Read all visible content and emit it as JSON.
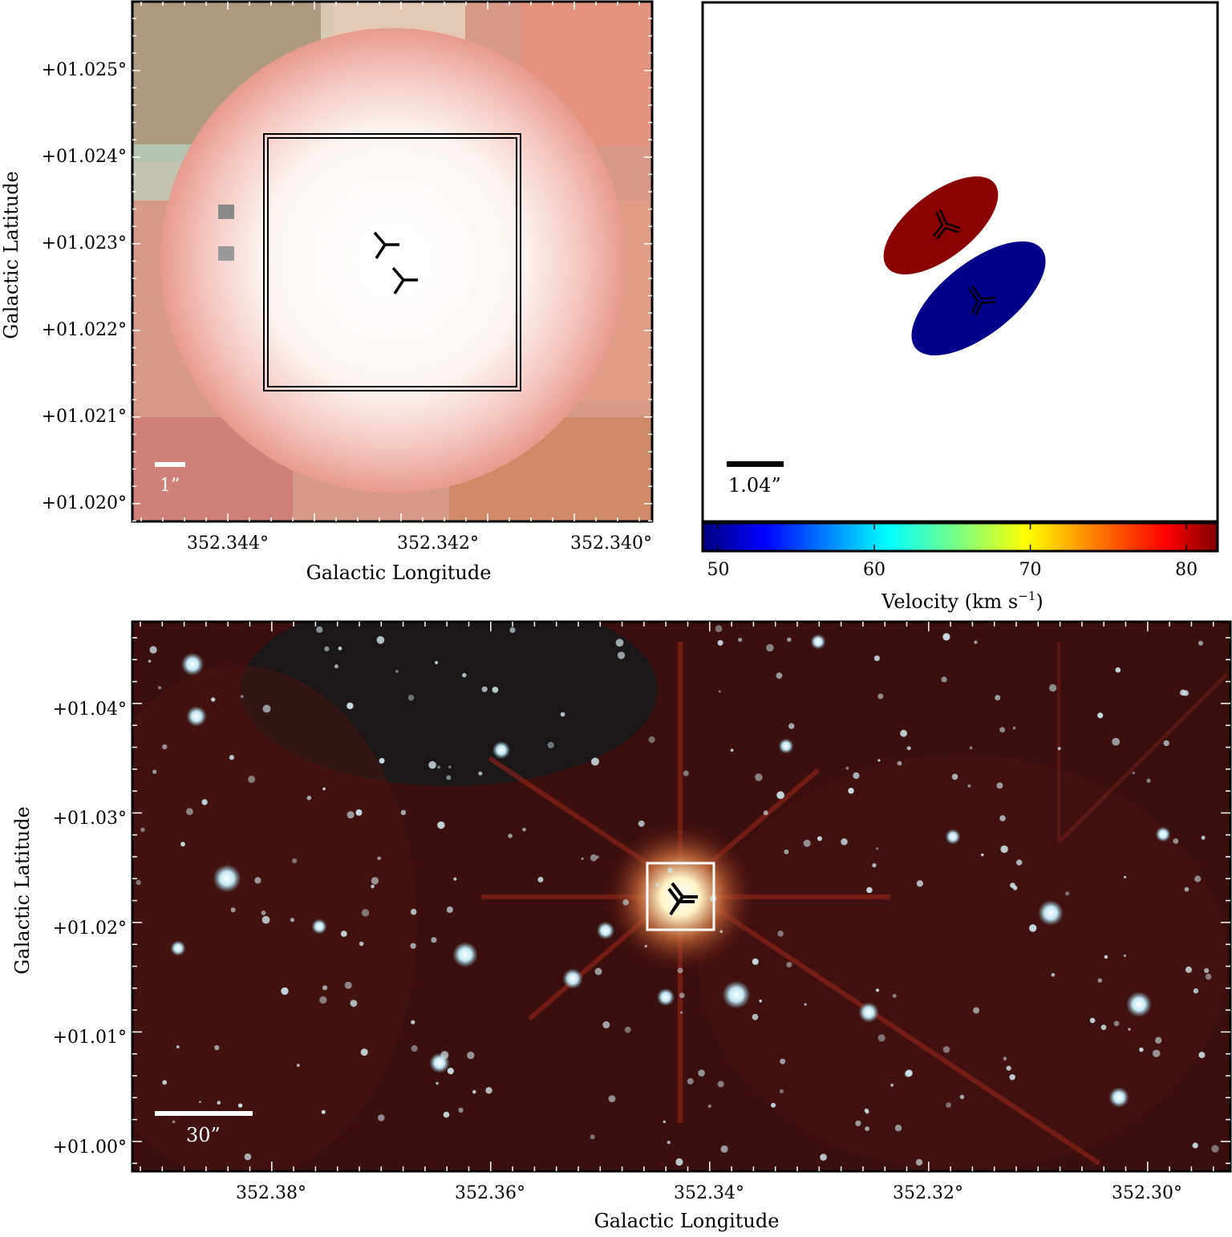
{
  "top_left": {
    "xlabel": "Galactic Longitude",
    "ylabel": "Galactic Latitude",
    "x_ticks": [
      "352.344°",
      "352.342°",
      "352.340°"
    ],
    "y_ticks": [
      "+01.025°",
      "+01.024°",
      "+01.023°",
      "+01.022°",
      "+01.021°",
      "+01.020°"
    ],
    "scale_label": "1”"
  },
  "top_right": {
    "scale_label": "1.04”",
    "colorbar": {
      "label": "Velocity (km s",
      "label_sup": "−1",
      "label_end": ")",
      "ticks": [
        "50",
        "60",
        "70",
        "80"
      ],
      "range": [
        49,
        82
      ],
      "colors": [
        "#00007f",
        "#0000ff",
        "#00ffff",
        "#7fff7f",
        "#ffff00",
        "#ff7f00",
        "#ff0000",
        "#7f0000"
      ]
    },
    "components": [
      {
        "velocity": 81,
        "color": "#8b0000"
      },
      {
        "velocity": 50,
        "color": "#00008b"
      }
    ]
  },
  "bottom": {
    "xlabel": "Galactic Longitude",
    "ylabel": "Galactic Latitude",
    "x_ticks": [
      "352.38°",
      "352.36°",
      "352.34°",
      "352.32°",
      "352.30°"
    ],
    "y_ticks": [
      "+01.04°",
      "+01.03°",
      "+01.02°",
      "+01.01°",
      "+01.00°"
    ],
    "scale_label": "30”"
  }
}
